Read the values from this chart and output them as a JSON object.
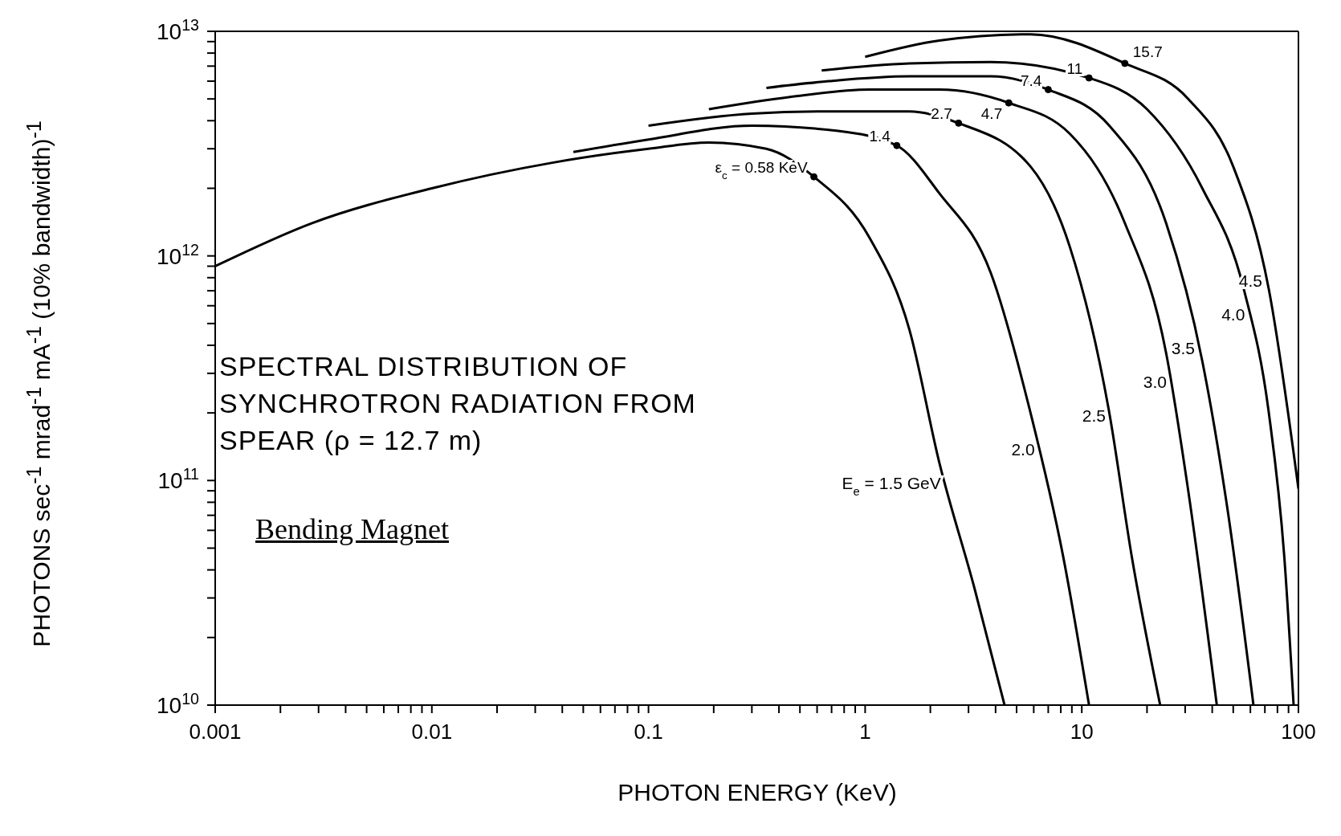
{
  "chart_data": {
    "type": "line",
    "title": "SPECTRAL DISTRIBUTION OF SYNCHROTRON RADIATION FROM SPEAR (ρ = 12.7 m)",
    "xlabel": "PHOTON ENERGY (KeV)",
    "ylabel": "PHOTONS sec$^{-1}$ mrad$^{-1}$ mA$^{-1}$ (10% bandwidth)$^{-1}$",
    "log": "xy",
    "grid": false,
    "legend": false,
    "marker": "none",
    "line_style": "solid",
    "xlim": [
      0.001,
      100
    ],
    "ylim": [
      10000000000.0,
      10000000000000.0
    ],
    "xticks": [
      0.001,
      {
        "value": 0.002,
        "label": null
      },
      {
        "value": 0.003,
        "label": null
      },
      {
        "value": 0.004,
        "label": null
      },
      {
        "value": 0.005,
        "label": null
      },
      {
        "value": 0.006,
        "label": null
      },
      {
        "value": 0.007,
        "label": null
      },
      {
        "value": 0.008,
        "label": null
      },
      {
        "value": 0.009,
        "label": null
      },
      0.01,
      {
        "value": 0.02,
        "label": null
      },
      {
        "value": 0.03,
        "label": null
      },
      {
        "value": 0.04,
        "label": null
      },
      {
        "value": 0.05,
        "label": null
      },
      {
        "value": 0.06,
        "label": null
      },
      {
        "value": 0.07,
        "label": null
      },
      {
        "value": 0.08,
        "label": null
      },
      {
        "value": 0.09,
        "label": null
      },
      0.1,
      {
        "value": 0.2,
        "label": null
      },
      {
        "value": 0.3,
        "label": null
      },
      {
        "value": 0.4,
        "label": null
      },
      {
        "value": 0.5,
        "label": null
      },
      {
        "value": 0.6,
        "label": null
      },
      {
        "value": 0.7,
        "label": null
      },
      {
        "value": 0.8,
        "label": null
      },
      {
        "value": 0.9,
        "label": null
      },
      1,
      {
        "value": 2,
        "label": null
      },
      {
        "value": 3,
        "label": null
      },
      {
        "value": 4,
        "label": null
      },
      {
        "value": 5,
        "label": null
      },
      {
        "value": 6,
        "label": null
      },
      {
        "value": 7,
        "label": null
      },
      {
        "value": 8,
        "label": null
      },
      {
        "value": 9,
        "label": null
      },
      10,
      {
        "value": 20,
        "label": null
      },
      {
        "value": 30,
        "label": null
      },
      {
        "value": 40,
        "label": null
      },
      {
        "value": 50,
        "label": null
      },
      {
        "value": 60,
        "label": null
      },
      {
        "value": 70,
        "label": null
      },
      {
        "value": 80,
        "label": null
      },
      {
        "value": 90,
        "label": null
      },
      100
    ],
    "yticks": [
      {
        "value": 10000000000.0,
        "label": "10$^{10}$"
      },
      {
        "value": 20000000000.0,
        "label": null
      },
      {
        "value": 30000000000.0,
        "label": null
      },
      {
        "value": 40000000000.0,
        "label": null
      },
      {
        "value": 50000000000.0,
        "label": null
      },
      {
        "value": 60000000000.0,
        "label": null
      },
      {
        "value": 70000000000.0,
        "label": null
      },
      {
        "value": 80000000000.0,
        "label": null
      },
      {
        "value": 90000000000.0,
        "label": null
      },
      {
        "value": 100000000000.0,
        "label": "10$^{11}$"
      },
      {
        "value": 200000000000.0,
        "label": null
      },
      {
        "value": 300000000000.0,
        "label": null
      },
      {
        "value": 400000000000.0,
        "label": null
      },
      {
        "value": 500000000000.0,
        "label": null
      },
      {
        "value": 600000000000.0,
        "label": null
      },
      {
        "value": 700000000000.0,
        "label": null
      },
      {
        "value": 800000000000.0,
        "label": null
      },
      {
        "value": 900000000000.0,
        "label": null
      },
      {
        "value": 1000000000000.0,
        "label": "10$^{12}$"
      },
      {
        "value": 2000000000000.0,
        "label": null
      },
      {
        "value": 3000000000000.0,
        "label": null
      },
      {
        "value": 4000000000000.0,
        "label": null
      },
      {
        "value": 5000000000000.0,
        "label": null
      },
      {
        "value": 6000000000000.0,
        "label": null
      },
      {
        "value": 7000000000000.0,
        "label": null
      },
      {
        "value": 8000000000000.0,
        "label": null
      },
      {
        "value": 9000000000000.0,
        "label": null
      },
      {
        "value": 10000000000000.0,
        "label": "10$^{13}$"
      }
    ],
    "series": [
      {
        "name": "E$_{e}$ = 1.5 GeV",
        "color": "#000000",
        "x": [
          0.001,
          0.0028,
          0.01,
          0.036,
          0.1,
          0.19,
          0.35,
          0.58,
          1.05,
          1.6,
          2.2,
          3.2,
          4.4
        ],
        "values": [
          900000000000.0,
          1400000000000.0,
          2000000000000.0,
          2600000000000.0,
          3000000000000.0,
          3200000000000.0,
          3000000000000.0,
          2250000000000.0,
          1200000000000.0,
          470000000000.0,
          120000000000.0,
          33000000000.0,
          10000000000.0
        ]
      },
      {
        "name": "2.0",
        "color": "#000000",
        "x": [
          0.045,
          0.1,
          0.3,
          0.75,
          1.4,
          2.2,
          3.8,
          5.8,
          8.2,
          10.8
        ],
        "values": [
          2900000000000.0,
          3300000000000.0,
          3800000000000.0,
          3600000000000.0,
          3100000000000.0,
          1900000000000.0,
          840000000000.0,
          200000000000.0,
          46000000000.0,
          10000000000.0
        ]
      },
      {
        "name": "2.5",
        "color": "#000000",
        "x": [
          0.1,
          0.3,
          0.68,
          1.6,
          2.7,
          5.8,
          8.8,
          13.4,
          17,
          23
        ],
        "values": [
          3800000000000.0,
          4300000000000.0,
          4400000000000.0,
          4400000000000.0,
          3900000000000.0,
          2500000000000.0,
          1100000000000.0,
          200000000000.0,
          46000000000.0,
          10000000000.0
        ]
      },
      {
        "name": "3.0",
        "color": "#000000",
        "x": [
          0.19,
          0.45,
          1.05,
          2.2,
          4.6,
          8.8,
          15.8,
          24.5,
          31,
          42
        ],
        "values": [
          4500000000000.0,
          5100000000000.0,
          5500000000000.0,
          5500000000000.0,
          4800000000000.0,
          3500000000000.0,
          1400000000000.0,
          370000000000.0,
          90000000000.0,
          10000000000.0
        ]
      },
      {
        "name": "3.5",
        "color": "#000000",
        "x": [
          0.35,
          0.68,
          1.6,
          3.8,
          7.0,
          13.4,
          24.5,
          36,
          47,
          62
        ],
        "values": [
          5600000000000.0,
          6000000000000.0,
          6300000000000.0,
          6300000000000.0,
          5500000000000.0,
          3800000000000.0,
          1400000000000.0,
          340000000000.0,
          75000000000.0,
          10000000000.0
        ]
      },
      {
        "name": "4.0",
        "color": "#000000",
        "x": [
          0.63,
          1.6,
          3.8,
          10.8,
          20,
          36,
          56,
          73,
          86,
          95
        ],
        "values": [
          6700000000000.0,
          7200000000000.0,
          7300000000000.0,
          6200000000000.0,
          4500000000000.0,
          2000000000000.0,
          710000000000.0,
          200000000000.0,
          46000000000.0,
          10000000000.0
        ]
      },
      {
        "name": "4.5",
        "color": "#000000",
        "x": [
          1.0,
          2.2,
          5.8,
          15.8,
          31,
          50,
          73,
          100
        ],
        "values": [
          7700000000000.0,
          9100000000000.0,
          9700000000000.0,
          7200000000000.0,
          5000000000000.0,
          2500000000000.0,
          710000000000.0,
          92000000000.0
        ]
      }
    ],
    "annotations": [
      "Bending Magnet",
      {
        "text": "ε$_{c}$ = 0.58 KeV",
        "x": 0.58,
        "y": 2250000000000.0
      },
      {
        "text": "1.4",
        "x": 1.4,
        "y": 3100000000000.0
      },
      {
        "text": "2.7",
        "x": 2.7,
        "y": 3900000000000.0
      },
      {
        "text": "4.7",
        "x": 4.6,
        "y": 4800000000000.0
      },
      {
        "text": "7.4",
        "x": 7.0,
        "y": 5500000000000.0
      },
      {
        "text": "11",
        "x": 10.8,
        "y": 6200000000000.0
      },
      {
        "text": "15.7",
        "x": 15.8,
        "y": 7200000000000.0
      }
    ]
  }
}
